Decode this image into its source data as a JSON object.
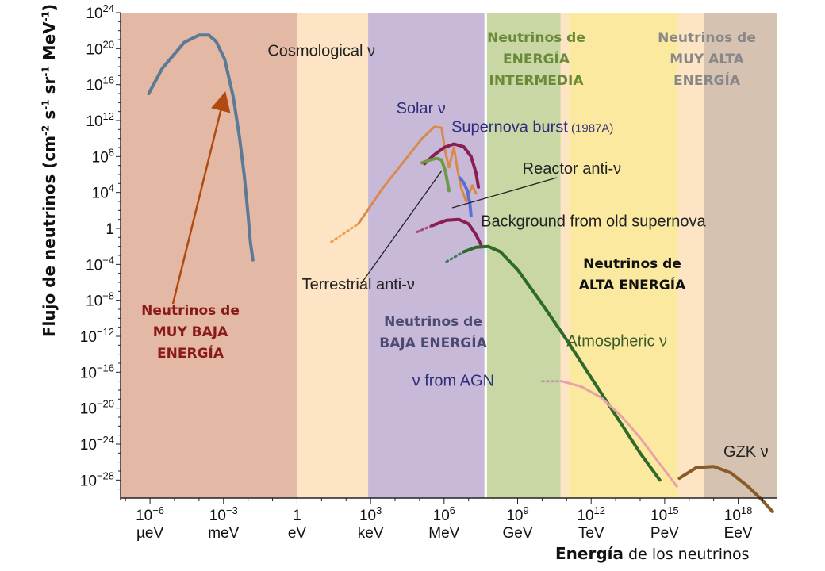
{
  "chart_data": {
    "type": "line",
    "ylabel_parts": [
      "Flujo de neutrinos ",
      "(cm",
      "-2",
      " s",
      "-1",
      " sr",
      "-1",
      " MeV",
      "-1",
      ")"
    ],
    "xlabel_bold": "Energía",
    "xlabel_rest": " de los neutrinos",
    "y_scale": "log10",
    "ylim_exp": [
      -30,
      24
    ],
    "y_ticks": [
      {
        "v": 24,
        "base": "10",
        "exp": "24"
      },
      {
        "v": 20,
        "base": "10",
        "exp": "20"
      },
      {
        "v": 16,
        "base": "10",
        "exp": "16"
      },
      {
        "v": 12,
        "base": "10",
        "exp": "12"
      },
      {
        "v": 8,
        "base": "10",
        "exp": "8"
      },
      {
        "v": 4,
        "base": "10",
        "exp": "4"
      },
      {
        "v": 0,
        "base": "1",
        "exp": ""
      },
      {
        "v": -4,
        "base": "10",
        "exp": "−4"
      },
      {
        "v": -8,
        "base": "10",
        "exp": "−8"
      },
      {
        "v": -12,
        "base": "10",
        "exp": "−12"
      },
      {
        "v": -16,
        "base": "10",
        "exp": "−16"
      },
      {
        "v": -20,
        "base": "10",
        "exp": "−20"
      },
      {
        "v": -24,
        "base": "10",
        "exp": "−24"
      },
      {
        "v": -28,
        "base": "10",
        "exp": "−28"
      }
    ],
    "x_scale": "log10",
    "x_unit": "eV",
    "xlim_exp": [
      -7.2,
      19.6
    ],
    "x_ticks": [
      {
        "v": -6,
        "base": "10",
        "exp": "−6",
        "unit": "µeV"
      },
      {
        "v": -3,
        "base": "10",
        "exp": "−3",
        "unit": "meV"
      },
      {
        "v": 0,
        "base": "1",
        "exp": "",
        "unit": "eV"
      },
      {
        "v": 3,
        "base": "10",
        "exp": "3",
        "unit": "keV"
      },
      {
        "v": 6,
        "base": "10",
        "exp": "6",
        "unit": "MeV"
      },
      {
        "v": 9,
        "base": "10",
        "exp": "9",
        "unit": "GeV"
      },
      {
        "v": 12,
        "base": "10",
        "exp": "12",
        "unit": "TeV"
      },
      {
        "v": 15,
        "base": "10",
        "exp": "15",
        "unit": "PeV"
      },
      {
        "v": 18,
        "base": "10",
        "exp": "18",
        "unit": "EeV"
      }
    ],
    "bands": [
      {
        "x0": -7.2,
        "x1": 0.0,
        "color": "#e3b8a4"
      },
      {
        "x0": 0.0,
        "x1": 2.9,
        "color": "#fce4c4"
      },
      {
        "x0": 2.9,
        "x1": 7.65,
        "color": "#c8b9d9"
      },
      {
        "x0": 7.65,
        "x1": 7.75,
        "color": "#ffffff"
      },
      {
        "x0": 7.75,
        "x1": 10.75,
        "color": "#c9d7a4"
      },
      {
        "x0": 10.75,
        "x1": 11.1,
        "color": "#fce4c4"
      },
      {
        "x0": 11.1,
        "x1": 15.55,
        "color": "#fbe9a0"
      },
      {
        "x0": 15.55,
        "x1": 16.6,
        "color": "#fce4c4"
      },
      {
        "x0": 16.6,
        "x1": 19.6,
        "color": "#d5c2b0"
      }
    ],
    "series": [
      {
        "name": "Cosmological ν",
        "color": "#5a7a96",
        "width": 4,
        "points": [
          [
            -6.05,
            15
          ],
          [
            -5.5,
            17.8
          ],
          [
            -4.6,
            20.7
          ],
          [
            -4.0,
            21.5
          ],
          [
            -3.6,
            21.5
          ],
          [
            -3.3,
            20.8
          ],
          [
            -2.95,
            18.8
          ],
          [
            -2.6,
            14.6
          ],
          [
            -2.35,
            10.2
          ],
          [
            -2.15,
            5.8
          ],
          [
            -2.0,
            1.5
          ],
          [
            -1.9,
            -1.6
          ],
          [
            -1.8,
            -3.5
          ]
        ]
      },
      {
        "name": "Solar ν (dotted)",
        "color": "#f1a048",
        "width": 3,
        "dash": "2,4",
        "points": [
          [
            1.4,
            -1.5
          ],
          [
            2.5,
            0.5
          ]
        ]
      },
      {
        "name": "Solar ν",
        "color": "#d98a48",
        "width": 3,
        "points": [
          [
            2.5,
            0.5
          ],
          [
            3.5,
            4.5
          ],
          [
            4.4,
            7.6
          ],
          [
            5.1,
            10.0
          ],
          [
            5.6,
            11.3
          ],
          [
            5.9,
            11.2
          ],
          [
            6.05,
            8.5
          ],
          [
            6.2,
            6.8
          ],
          [
            6.4,
            9.0
          ],
          [
            6.55,
            6.5
          ],
          [
            6.7,
            4.5
          ],
          [
            6.9,
            3.0
          ],
          [
            7.15,
            4.8
          ],
          [
            7.3,
            3.9
          ]
        ]
      },
      {
        "name": "Supernova burst (1987A)",
        "color": "#8a1e52",
        "width": 4,
        "points": [
          [
            5.2,
            7.2
          ],
          [
            5.6,
            8.2
          ],
          [
            6.0,
            9.0
          ],
          [
            6.4,
            9.4
          ],
          [
            6.8,
            9.1
          ],
          [
            7.1,
            8.0
          ],
          [
            7.3,
            6.2
          ],
          [
            7.4,
            4.6
          ]
        ]
      },
      {
        "name": "Reactor anti-ν",
        "color": "#5a70d4",
        "width": 4,
        "points": [
          [
            6.65,
            5.6
          ],
          [
            6.8,
            5.1
          ],
          [
            6.95,
            4.2
          ],
          [
            7.05,
            2.8
          ],
          [
            7.1,
            1.4
          ]
        ]
      },
      {
        "name": "Terrestrial anti-ν",
        "color": "#6e9a48",
        "width": 4,
        "points": [
          [
            5.1,
            7.3
          ],
          [
            5.4,
            7.6
          ],
          [
            5.7,
            7.8
          ],
          [
            5.9,
            7.6
          ],
          [
            6.05,
            6.4
          ],
          [
            6.2,
            4.2
          ]
        ]
      },
      {
        "name": "Background (dotted)",
        "color": "#a04a78",
        "width": 3,
        "dash": "2,4",
        "points": [
          [
            4.9,
            -0.4
          ],
          [
            5.5,
            0.3
          ]
        ]
      },
      {
        "name": "Background from old supernova",
        "color": "#8a1e52",
        "width": 4,
        "points": [
          [
            5.5,
            0.3
          ],
          [
            6.1,
            0.9
          ],
          [
            6.6,
            1.0
          ],
          [
            7.0,
            0.5
          ],
          [
            7.3,
            -0.7
          ],
          [
            7.5,
            -1.8
          ]
        ]
      },
      {
        "name": "Atmospheric dotted",
        "color": "#3a7a5a",
        "width": 3,
        "dash": "2,4",
        "points": [
          [
            6.1,
            -3.7
          ],
          [
            6.8,
            -2.6
          ]
        ]
      },
      {
        "name": "Atmospheric ν",
        "color": "#2e6a2a",
        "width": 4,
        "points": [
          [
            6.8,
            -2.6
          ],
          [
            7.3,
            -2.1
          ],
          [
            7.8,
            -2.0
          ],
          [
            8.3,
            -2.6
          ],
          [
            9.0,
            -4.6
          ],
          [
            10.0,
            -8.4
          ],
          [
            11.0,
            -12.4
          ],
          [
            12.0,
            -16.6
          ],
          [
            13.0,
            -20.8
          ],
          [
            14.0,
            -25.0
          ],
          [
            14.8,
            -28.0
          ]
        ]
      },
      {
        "name": "ν from AGN dotted",
        "color": "#c49aa8",
        "width": 3,
        "dash": "2,4",
        "points": [
          [
            10.0,
            -17.0
          ],
          [
            10.8,
            -17.0
          ]
        ]
      },
      {
        "name": "ν from AGN",
        "color": "#e8a2aa",
        "width": 3,
        "points": [
          [
            10.8,
            -17.0
          ],
          [
            11.6,
            -17.6
          ],
          [
            12.4,
            -18.8
          ],
          [
            13.2,
            -20.8
          ],
          [
            14.0,
            -23.3
          ],
          [
            14.8,
            -26.2
          ],
          [
            15.5,
            -28.7
          ]
        ]
      },
      {
        "name": "GZK ν",
        "color": "#8a5a28",
        "width": 4,
        "points": [
          [
            15.6,
            -27.8
          ],
          [
            16.3,
            -26.6
          ],
          [
            17.0,
            -26.5
          ],
          [
            17.7,
            -27.2
          ],
          [
            18.4,
            -28.7
          ],
          [
            19.0,
            -30.3
          ],
          [
            19.4,
            -31.5
          ]
        ]
      }
    ],
    "annotations": [
      {
        "text": "Cosmological ν",
        "x": -1.2,
        "y": 19.2,
        "color": "#222",
        "size": 20
      },
      {
        "text": "Solar ν",
        "x": 4.05,
        "y": 12.8,
        "color": "#2e2e7a",
        "size": 20
      },
      {
        "text": "Supernova burst",
        "x": 6.3,
        "y": 10.7,
        "color": "#2e2e7a",
        "size": 20,
        "extra": " (1987A)"
      },
      {
        "text": "Reactor anti-ν",
        "x": 9.2,
        "y": 6.1,
        "color": "#222",
        "size": 20
      },
      {
        "text": "Background from old supernova",
        "x": 7.5,
        "y": 0.2,
        "color": "#222",
        "size": 20
      },
      {
        "text": "Terrestrial anti-ν",
        "x": 0.2,
        "y": -6.8,
        "color": "#222",
        "size": 20
      },
      {
        "text": "Atmospheric ν",
        "x": 11.0,
        "y": -13.1,
        "color": "#3a5a2a",
        "size": 20
      },
      {
        "text": "ν from AGN",
        "x": 4.7,
        "y": -17.5,
        "color": "#2e2e7a",
        "size": 20
      },
      {
        "text": "GZK ν",
        "x": 17.4,
        "y": -25.4,
        "color": "#222",
        "size": 20
      }
    ],
    "region_labels": [
      {
        "lines": [
          "Neutrinos de",
          "MUY BAJA",
          "ENERGÍA"
        ],
        "cx": 240,
        "cy": 397,
        "color": "#8a1a1a"
      },
      {
        "lines": [
          "Neutrinos de",
          "BAJA ENERGÍA"
        ],
        "cx": 546,
        "cy": 411,
        "color": "#4a4a72"
      },
      {
        "lines": [
          "Neutrinos de",
          "ENERGÍA",
          "INTERMEDIA"
        ],
        "cx": 676,
        "cy": 53,
        "color": "#6a8a3a"
      },
      {
        "lines": [
          "Neutrinos de",
          "ALTA ENERGÍA"
        ],
        "cx": 797,
        "cy": 338,
        "color": "#111111"
      },
      {
        "lines": [
          "Neutrinos de",
          "MUY ALTA",
          "ENERGÍA"
        ],
        "cx": 891,
        "cy": 53,
        "color": "#888888"
      }
    ]
  }
}
